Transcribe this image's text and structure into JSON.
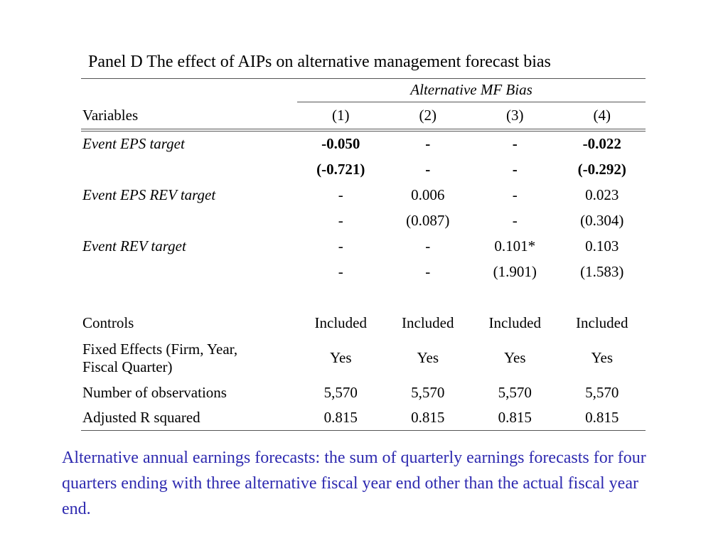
{
  "panel_title": "Panel D The effect of AIPs on alternative management forecast bias",
  "dependent_variable": "Alternative MF Bias",
  "header": {
    "variables": "Variables",
    "cols": [
      "(1)",
      "(2)",
      "(3)",
      "(4)"
    ]
  },
  "rows": [
    {
      "label": "Event EPS target",
      "coef": [
        "-0.050",
        "-",
        "-",
        "-0.022"
      ],
      "tstat": [
        "(-0.721)",
        "-",
        "-",
        "(-0.292)"
      ]
    },
    {
      "label": "Event EPS REV target",
      "coef": [
        "-",
        "0.006",
        "-",
        "0.023"
      ],
      "tstat": [
        "-",
        "(0.087)",
        "-",
        "(0.304)"
      ]
    },
    {
      "label": "Event REV target",
      "coef": [
        "-",
        "-",
        "0.101*",
        "0.103"
      ],
      "tstat": [
        "-",
        "-",
        "(1.901)",
        "(1.583)"
      ]
    }
  ],
  "controls": {
    "label": "Controls",
    "values": [
      "Included",
      "Included",
      "Included",
      "Included"
    ]
  },
  "fixed_effects": {
    "label_line1": "Fixed Effects (Firm, Year,",
    "label_line2": "Fiscal Quarter)",
    "values": [
      "Yes",
      "Yes",
      "Yes",
      "Yes"
    ]
  },
  "observations": {
    "label": "Number of observations",
    "values": [
      "5,570",
      "5,570",
      "5,570",
      "5,570"
    ]
  },
  "r_squared": {
    "label": "Adjusted R squared",
    "values": [
      "0.815",
      "0.815",
      "0.815",
      "0.815"
    ]
  },
  "note": "Alternative annual earnings forecasts: the sum of quarterly earnings forecasts for four quarters ending with three alternative fiscal year end other than the actual fiscal year end.",
  "colors": {
    "note_text": "#2e2ab0",
    "rule": "#555555"
  }
}
